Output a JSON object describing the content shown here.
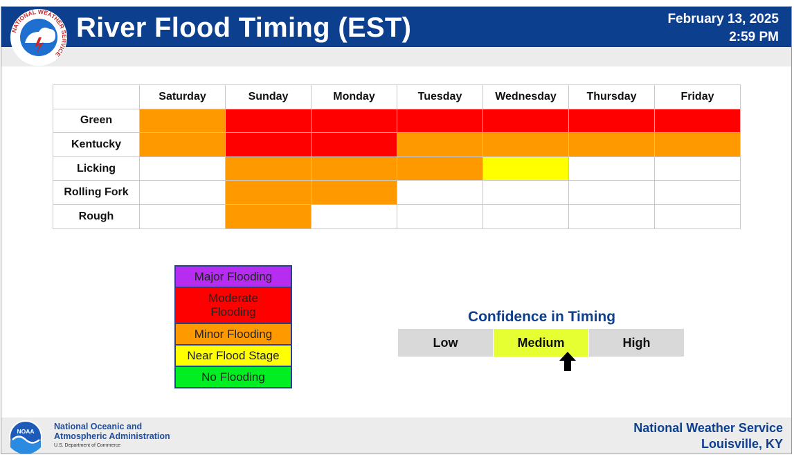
{
  "header": {
    "title": "River Flood Timing (EST)",
    "date": "February 13, 2025",
    "time": "2:59 PM",
    "logo_ring_text": "NATIONAL WEATHER SERVICE"
  },
  "colors": {
    "major": "#b62cf0",
    "moderate": "#ff0000",
    "minor": "#ff9900",
    "near": "#ffff00",
    "none_table": "#ffffff",
    "none_legend": "#00ee22",
    "header_blue": "#0d3f8f",
    "confidence_active": "#e6ff33"
  },
  "timing_table": {
    "days": [
      "Saturday",
      "Sunday",
      "Monday",
      "Tuesday",
      "Wednesday",
      "Thursday",
      "Friday"
    ],
    "rivers": [
      {
        "name": "Green",
        "levels": [
          "minor",
          "moderate",
          "moderate",
          "moderate",
          "moderate",
          "moderate",
          "moderate"
        ]
      },
      {
        "name": "Kentucky",
        "levels": [
          "minor",
          "moderate",
          "moderate",
          "minor",
          "minor",
          "minor",
          "minor"
        ]
      },
      {
        "name": "Licking",
        "levels": [
          "none",
          "minor",
          "minor",
          "minor",
          "near",
          "none",
          "none"
        ]
      },
      {
        "name": "Rolling Fork",
        "levels": [
          "none",
          "minor",
          "minor",
          "none",
          "none",
          "none",
          "none"
        ]
      },
      {
        "name": "Rough",
        "levels": [
          "none",
          "minor",
          "none",
          "none",
          "none",
          "none",
          "none"
        ]
      }
    ]
  },
  "legend": [
    {
      "key": "major",
      "lines": [
        "Major Flooding"
      ]
    },
    {
      "key": "moderate",
      "lines": [
        "Moderate",
        "Flooding"
      ]
    },
    {
      "key": "minor",
      "lines": [
        "Minor Flooding"
      ]
    },
    {
      "key": "near",
      "lines": [
        "Near Flood Stage"
      ]
    },
    {
      "key": "none",
      "lines": [
        "No Flooding"
      ]
    }
  ],
  "confidence": {
    "title": "Confidence in Timing",
    "levels": [
      "Low",
      "Medium",
      "High"
    ],
    "selected": "Medium"
  },
  "footer": {
    "noaa_line1": "National Oceanic and",
    "noaa_line2": "Atmospheric Administration",
    "noaa_dept": "U.S. Department of Commerce",
    "noaa_logo_text": "NOAA",
    "nws_name": "National Weather Service",
    "nws_office": "Louisville, KY"
  }
}
